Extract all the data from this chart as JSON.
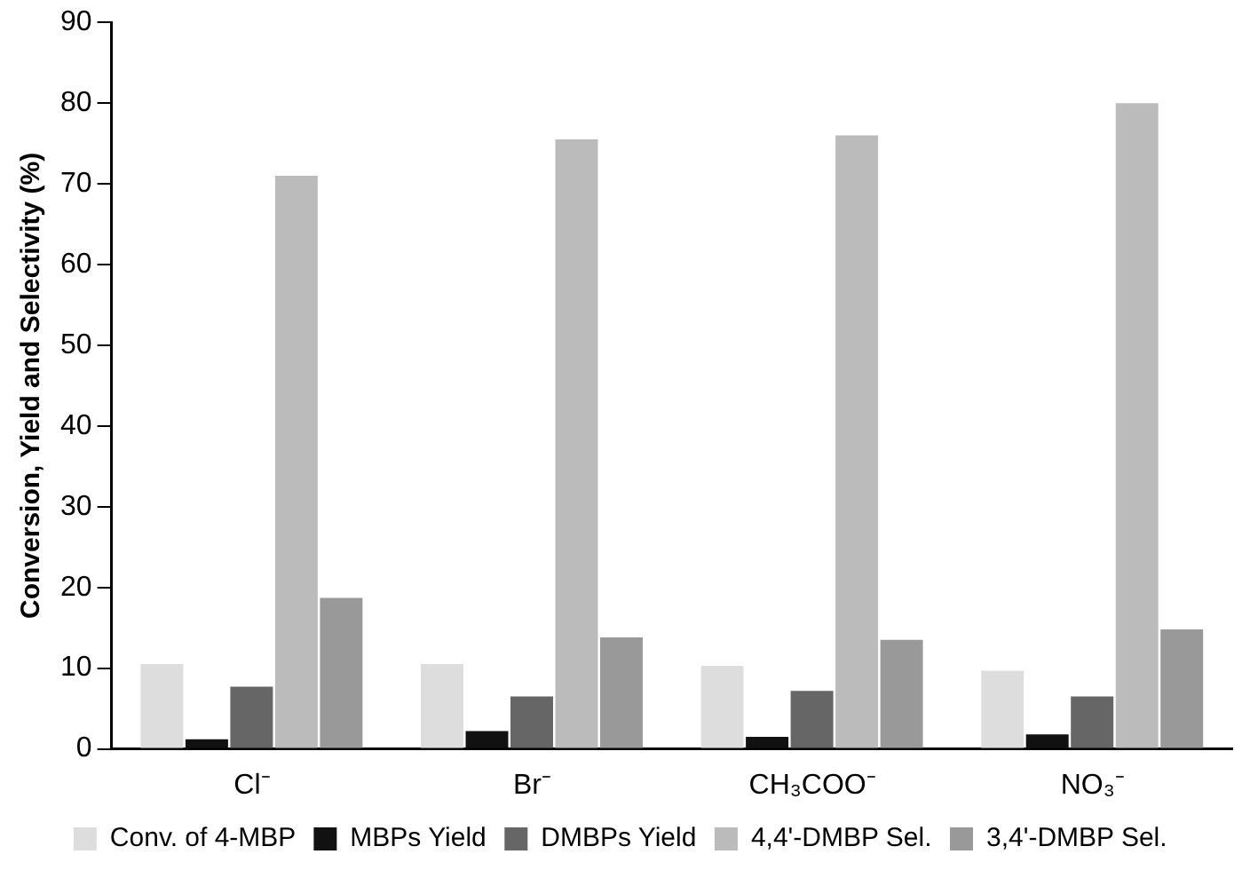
{
  "chart_data": {
    "type": "bar",
    "ylabel": "Conversion, Yield and Selectivity (%)",
    "categories": [
      "Cl⁻",
      "Br⁻",
      "CH₃COO⁻",
      "NO₃⁻"
    ],
    "series": [
      {
        "name": "Conv. of 4-MBP",
        "color": "#dddddd",
        "values": [
          10.5,
          10.5,
          10.3,
          9.7
        ]
      },
      {
        "name": "MBPs Yield",
        "color": "#111111",
        "values": [
          1.2,
          2.2,
          1.5,
          1.8
        ]
      },
      {
        "name": "DMBPs Yield",
        "color": "#666666",
        "values": [
          7.7,
          6.5,
          7.2,
          6.5
        ]
      },
      {
        "name": "4,4'-DMBP Sel.",
        "color": "#bbbbbb",
        "values": [
          71,
          75.5,
          76,
          80
        ]
      },
      {
        "name": "3,4'-DMBP Sel.",
        "color": "#999999",
        "values": [
          18.7,
          13.8,
          13.5,
          14.8
        ]
      }
    ],
    "ylim": [
      0,
      90
    ],
    "yticks": [
      0,
      10,
      20,
      30,
      40,
      50,
      60,
      70,
      80,
      90
    ],
    "grid": false,
    "legend": "bottom"
  }
}
